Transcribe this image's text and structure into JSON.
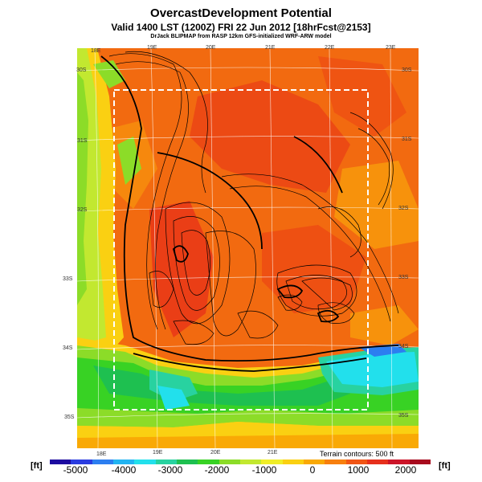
{
  "header": {
    "title": "OvercastDevelopment Potential",
    "valid_line": "Valid 1400 LST (1200Z) FRI 22 Jun 2012 [18hrFcst@2153]",
    "model_line": "DrJack BLIPMAP from RASP 12km GFS-initialized WRF-ARW model"
  },
  "map": {
    "lon_labels_top": [
      "18E",
      "19E",
      "20E",
      "21E",
      "22E",
      "23E"
    ],
    "lon_labels_bottom": [
      "18E",
      "19E",
      "20E",
      "21E"
    ],
    "lat_labels_left": [
      "30S",
      "31S",
      "32S",
      "33S",
      "34S",
      "35S"
    ],
    "lat_labels_right": [
      "30S",
      "31S",
      "32S",
      "33S",
      "34S",
      "35S"
    ]
  },
  "legend": {
    "left_unit": "[ft]",
    "right_unit": "[ft]",
    "terrain_note": "Terrain contours: 500 ft",
    "tick_labels": [
      "-5000",
      "-4000",
      "-3000",
      "-2000",
      "-1000",
      "0",
      "1000",
      "2000"
    ],
    "colors": [
      "#1c0aa0",
      "#2a3ce0",
      "#2c7ef0",
      "#22b4f2",
      "#22e0ec",
      "#28d2a0",
      "#1ec050",
      "#38d224",
      "#8cdc28",
      "#c2e830",
      "#f0ee28",
      "#fad012",
      "#f9a905",
      "#f77f0e",
      "#f15515",
      "#e6301c",
      "#cc1428",
      "#a80a1e"
    ]
  }
}
